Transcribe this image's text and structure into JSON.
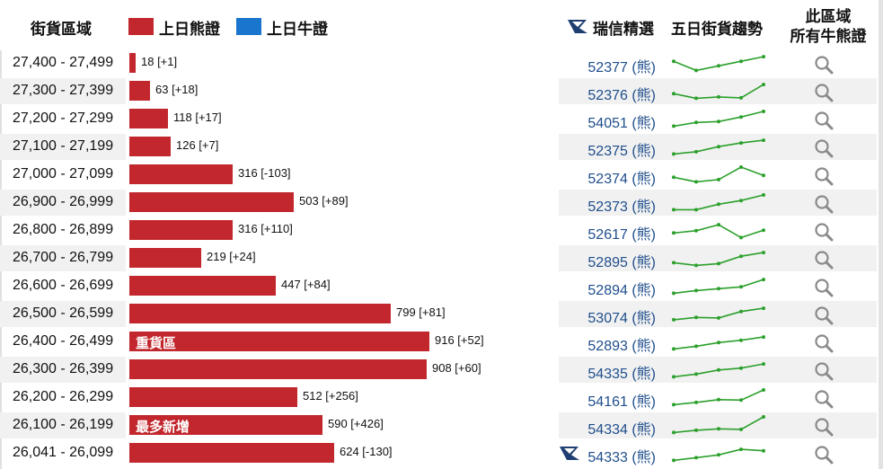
{
  "header": {
    "range_label": "街貨區域",
    "legend_bear": "上日熊證",
    "legend_bull": "上日牛證",
    "pick_label": "瑞信精選",
    "trend_label": "五日街貨趨勢",
    "all_label_line1": "此區域",
    "all_label_line2": "所有牛熊證"
  },
  "colors": {
    "bear": "#c1272d",
    "bull": "#1a75cf",
    "link": "#1f4e8c",
    "spark": "#2ca02c"
  },
  "rows": [
    {
      "range": "27,400 - 27,499",
      "value": 18,
      "label": "18 [+1]",
      "tag": "",
      "code": "52377 (熊)",
      "trend": [
        3,
        1,
        2,
        3,
        4
      ]
    },
    {
      "range": "27,300 - 27,399",
      "value": 63,
      "label": "63 [+18]",
      "tag": "",
      "code": "52376 (熊)",
      "trend": [
        2,
        1,
        1.3,
        1.1,
        4
      ]
    },
    {
      "range": "27,200 - 27,299",
      "value": 118,
      "label": "118 [+17]",
      "tag": "",
      "code": "54051 (熊)",
      "trend": [
        1,
        1.8,
        2,
        3,
        4.2
      ]
    },
    {
      "range": "27,100 - 27,199",
      "value": 126,
      "label": "126 [+7]",
      "tag": "",
      "code": "52375 (熊)",
      "trend": [
        1,
        1.5,
        2.6,
        3.4,
        4
      ]
    },
    {
      "range": "27,000 - 27,099",
      "value": 316,
      "label": "316 [-103]",
      "tag": "",
      "code": "52374 (熊)",
      "trend": [
        2,
        1,
        1.5,
        4.2,
        2.4
      ]
    },
    {
      "range": "26,900 - 26,999",
      "value": 503,
      "label": "503 [+89]",
      "tag": "",
      "code": "52373 (熊)",
      "trend": [
        1,
        1,
        2.2,
        3,
        4.2
      ]
    },
    {
      "range": "26,800 - 26,899",
      "value": 316,
      "label": "316 [+110]",
      "tag": "",
      "code": "52617 (熊)",
      "trend": [
        2,
        2.5,
        3.8,
        1,
        2.6
      ]
    },
    {
      "range": "26,700 - 26,799",
      "value": 219,
      "label": "219 [+24]",
      "tag": "",
      "code": "52895 (熊)",
      "trend": [
        1.6,
        1,
        1.4,
        3,
        3.8
      ]
    },
    {
      "range": "26,600 - 26,699",
      "value": 447,
      "label": "447 [+84]",
      "tag": "",
      "code": "52894 (熊)",
      "trend": [
        1,
        1.6,
        2,
        2.4,
        4
      ]
    },
    {
      "range": "26,500 - 26,599",
      "value": 799,
      "label": "799 [+81]",
      "tag": "",
      "code": "53074 (熊)",
      "trend": [
        1.3,
        1.8,
        1.7,
        3.1,
        3.8
      ]
    },
    {
      "range": "26,400 - 26,499",
      "value": 916,
      "label": "916 [+52]",
      "tag": "重貨區",
      "code": "52893 (熊)",
      "trend": [
        1,
        1.6,
        2.4,
        2.9,
        3.6
      ]
    },
    {
      "range": "26,300 - 26,399",
      "value": 908,
      "label": "908 [+60]",
      "tag": "",
      "code": "54335 (熊)",
      "trend": [
        1,
        1.6,
        2.5,
        2.9,
        3.8
      ]
    },
    {
      "range": "26,200 - 26,299",
      "value": 512,
      "label": "512 [+256]",
      "tag": "",
      "code": "54161 (熊)",
      "trend": [
        1,
        1.5,
        2.1,
        2,
        4.2
      ]
    },
    {
      "range": "26,100 - 26,199",
      "value": 590,
      "label": "590 [+426]",
      "tag": "最多新增",
      "code": "54334 (熊)",
      "trend": [
        1,
        1.5,
        1.8,
        1.7,
        4.4
      ]
    },
    {
      "range": "26,041 - 26,099",
      "value": 624,
      "label": "624 [-130]",
      "tag": "",
      "code": "54333 (熊)",
      "trend": [
        1,
        1.6,
        2.2,
        3.4,
        3.1
      ],
      "logo": true
    }
  ]
}
